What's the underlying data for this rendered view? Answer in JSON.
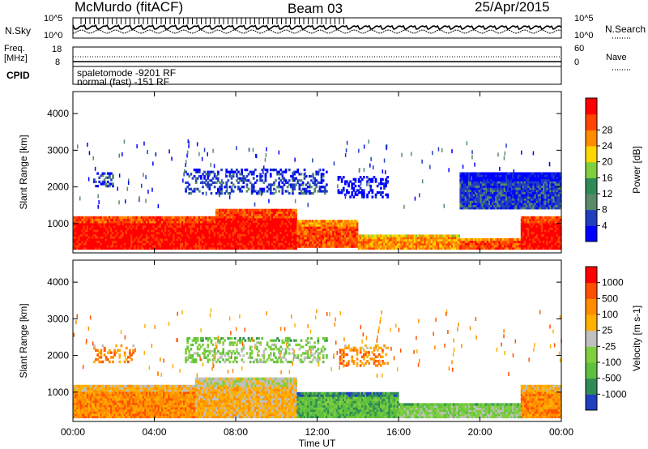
{
  "header": {
    "site": "McMurdo (fitACF)",
    "beam": "Beam 03",
    "date": "25/Apr/2015"
  },
  "strip1": {
    "left_label": "N.Sky",
    "right_label": "N.Search",
    "left_ticks": [
      "10^5",
      "10^0"
    ],
    "right_ticks": [
      "10^5",
      "10^0"
    ]
  },
  "strip2": {
    "left_label_1": "Freq.",
    "left_label_2": "[MHz]",
    "left_ticks": [
      "18",
      "8"
    ],
    "right_ticks": [
      "60",
      "0"
    ],
    "right_label": "Nave",
    "cpid_label": "CPID",
    "cpid_lines": [
      "spaletomode -9201 RF",
      "normal (fast) -151 RF"
    ]
  },
  "colors": {
    "palette": [
      "#0000ff",
      "#1f3fbf",
      "#5a8a6a",
      "#2e8b57",
      "#7fcf3f",
      "#ffd700",
      "#ff8c00",
      "#ff4500",
      "#ff0000"
    ]
  },
  "chart_data": [
    {
      "type": "heatmap",
      "name": "power",
      "xlabel": "Time UT",
      "ylabel": "Slant Range [km]",
      "x_ticks": [
        "00:00",
        "04:00",
        "08:00",
        "12:00",
        "16:00",
        "20:00",
        "00:00"
      ],
      "y_ticks": [
        1000,
        2000,
        3000,
        4000
      ],
      "ylim": [
        200,
        4600
      ],
      "colorbar_label": "Power [dB]",
      "colorbar_ticks": [
        4,
        8,
        12,
        16,
        20,
        24,
        28
      ],
      "colorbar_colors": [
        "#0000ff",
        "#1f3fbf",
        "#5a8a6a",
        "#2e8b57",
        "#7fcf3f",
        "#ffd700",
        "#ff8c00",
        "#ff4500",
        "#ff0000"
      ],
      "regions": [
        {
          "t0": 0.0,
          "t1": 7.0,
          "r0": 300,
          "r1": 1200,
          "level": 8
        },
        {
          "t0": 7.0,
          "t1": 11.0,
          "r0": 300,
          "r1": 1400,
          "level": 8
        },
        {
          "t0": 11.0,
          "t1": 14.0,
          "r0": 350,
          "r1": 1100,
          "level": 7
        },
        {
          "t0": 14.0,
          "t1": 19.0,
          "r0": 300,
          "r1": 700,
          "level": 6
        },
        {
          "t0": 19.0,
          "t1": 22.0,
          "r0": 300,
          "r1": 600,
          "level": 7
        },
        {
          "t0": 22.0,
          "t1": 24.0,
          "r0": 300,
          "r1": 1200,
          "level": 8
        },
        {
          "t0": 1.0,
          "t1": 2.0,
          "r0": 2000,
          "r1": 2400,
          "level": 1
        },
        {
          "t0": 5.5,
          "t1": 12.5,
          "r0": 1800,
          "r1": 2500,
          "level": 1
        },
        {
          "t0": 13.0,
          "t1": 15.5,
          "r0": 1700,
          "r1": 2300,
          "level": 0
        },
        {
          "t0": 19.0,
          "t1": 24.0,
          "r0": 1400,
          "r1": 2400,
          "level": 1
        }
      ]
    },
    {
      "type": "heatmap",
      "name": "velocity",
      "xlabel": "Time UT",
      "ylabel": "Slant Range [km]",
      "x_ticks": [
        "00:00",
        "04:00",
        "08:00",
        "12:00",
        "16:00",
        "20:00",
        "00:00"
      ],
      "y_ticks": [
        1000,
        2000,
        3000,
        4000
      ],
      "ylim": [
        200,
        4600
      ],
      "colorbar_label": "Velocity [m s-1]",
      "colorbar_ticks": [
        1000,
        500,
        100,
        25,
        -25,
        -100,
        -500,
        -1000
      ],
      "colorbar_colors": [
        "#1f3fbf",
        "#2e8b57",
        "#5fbf3f",
        "#7fcf3f",
        "#c0c0c0",
        "#ffb000",
        "#ff8c00",
        "#ff5000",
        "#ff0000"
      ],
      "regions": [
        {
          "t0": 0.0,
          "t1": 6.0,
          "r0": 300,
          "r1": 1200,
          "level": 6
        },
        {
          "t0": 6.0,
          "t1": 11.0,
          "r0": 300,
          "r1": 1400,
          "level": 5
        },
        {
          "t0": 11.0,
          "t1": 16.0,
          "r0": 300,
          "r1": 1000,
          "level": 2
        },
        {
          "t0": 16.0,
          "t1": 22.0,
          "r0": 300,
          "r1": 700,
          "level": 3
        },
        {
          "t0": 22.0,
          "t1": 24.0,
          "r0": 300,
          "r1": 1200,
          "level": 6
        },
        {
          "t0": 1.0,
          "t1": 3.0,
          "r0": 1800,
          "r1": 2300,
          "level": 6
        },
        {
          "t0": 5.5,
          "t1": 12.5,
          "r0": 1800,
          "r1": 2500,
          "level": 3
        },
        {
          "t0": 13.0,
          "t1": 15.5,
          "r0": 1700,
          "r1": 2300,
          "level": 6
        }
      ]
    }
  ]
}
